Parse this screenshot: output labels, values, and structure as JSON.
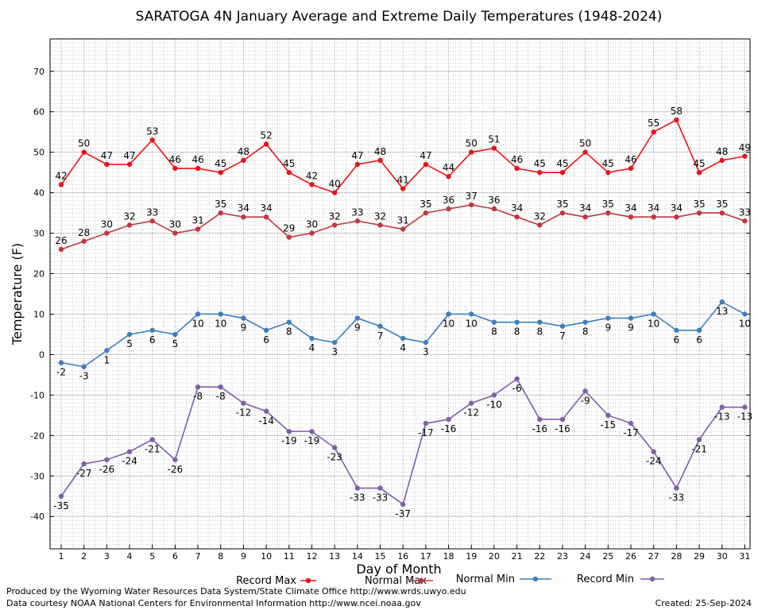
{
  "chart_data": {
    "type": "line",
    "title": "SARATOGA 4N January Average and Extreme Daily Temperatures (1948-2024)",
    "xlabel": "Day of Month",
    "ylabel": "Temperature (F)",
    "ylim": [
      -48,
      78
    ],
    "yticks": [
      -40,
      -30,
      -20,
      -10,
      0,
      10,
      20,
      30,
      40,
      50,
      60,
      70
    ],
    "x": [
      1,
      2,
      3,
      4,
      5,
      6,
      7,
      8,
      9,
      10,
      11,
      12,
      13,
      14,
      15,
      16,
      17,
      18,
      19,
      20,
      21,
      22,
      23,
      24,
      25,
      26,
      27,
      28,
      29,
      30,
      31
    ],
    "grid": true,
    "legend_placement": "bottom",
    "series": [
      {
        "name": "Record Max",
        "color": "#e8141a",
        "values": [
          42,
          50,
          47,
          47,
          53,
          46,
          46,
          45,
          48,
          52,
          45,
          42,
          40,
          47,
          48,
          41,
          47,
          44,
          50,
          51,
          46,
          45,
          45,
          50,
          45,
          46,
          55,
          58,
          45,
          48,
          49
        ]
      },
      {
        "name": "Normal Max",
        "color": "#c0373f",
        "values": [
          26,
          28,
          30,
          32,
          33,
          30,
          31,
          35,
          34,
          34,
          29,
          30,
          32,
          33,
          32,
          31,
          35,
          36,
          37,
          36,
          34,
          32,
          35,
          34,
          35,
          34,
          34,
          34,
          35,
          35,
          33
        ]
      },
      {
        "name": "Normal Min",
        "color": "#3f7fbf",
        "values": [
          -2,
          -3,
          1,
          5,
          6,
          5,
          10,
          10,
          9,
          6,
          8,
          4,
          3,
          9,
          7,
          4,
          3,
          10,
          10,
          8,
          8,
          8,
          7,
          8,
          9,
          9,
          10,
          6,
          6,
          13,
          10
        ]
      },
      {
        "name": "Record Min",
        "color": "#7e5fa8",
        "values": [
          -35,
          -27,
          -26,
          -24,
          -21,
          -26,
          -8,
          -8,
          -12,
          -14,
          -19,
          -19,
          -23,
          -33,
          -33,
          -37,
          -17,
          -16,
          -12,
          -10,
          -6,
          -16,
          -16,
          -9,
          -15,
          -17,
          -24,
          -33,
          -21,
          -13,
          -13
        ]
      }
    ]
  },
  "footer": {
    "credit_line1": "Produced by the Wyoming Water Resources Data System/State Climate Office http://www.wrds.uwyo.edu",
    "credit_line2": "Data courtesy NOAA National Centers for Environmental Information http://www.ncei.noaa.gov",
    "created": "Created:  25-Sep-2024"
  }
}
